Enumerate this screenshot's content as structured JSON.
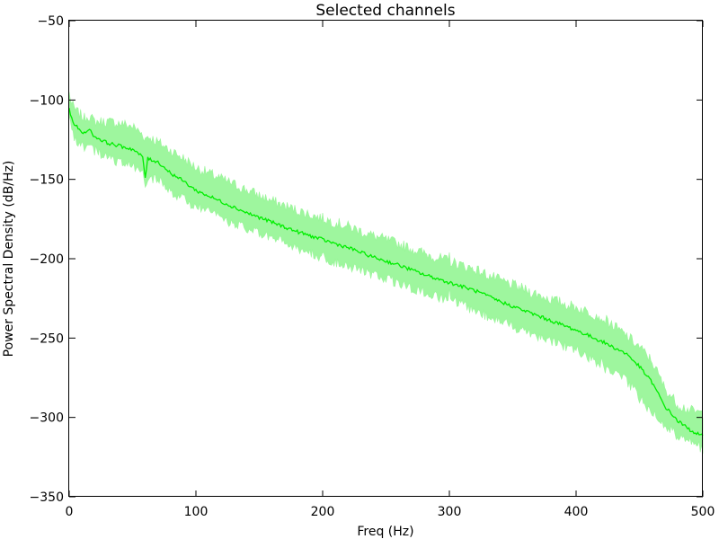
{
  "chart_data": {
    "type": "line",
    "title": "Selected channels",
    "xlabel": "Freq (Hz)",
    "ylabel": "Power Spectral Density (dB/Hz)",
    "xlim": [
      0,
      500
    ],
    "ylim": [
      -350,
      -50
    ],
    "xticks": [
      0,
      100,
      200,
      300,
      400,
      500
    ],
    "yticks": [
      -350,
      -300,
      -250,
      -200,
      -150,
      -100,
      -50
    ],
    "grid": false,
    "colors": {
      "line": "#00ee00",
      "band": "#99f599",
      "axes": "#000000"
    },
    "series": [
      {
        "x": [
          0,
          2,
          5,
          8,
          12,
          15,
          20,
          30,
          40,
          50,
          58,
          60,
          62,
          70,
          80,
          90,
          100,
          120,
          140,
          160,
          180,
          200,
          220,
          240,
          260,
          280,
          300,
          320,
          340,
          360,
          380,
          400,
          420,
          440,
          450,
          460,
          470,
          480,
          490,
          500
        ],
        "mean": [
          -105,
          -112,
          -116,
          -119,
          -121,
          -118,
          -123,
          -127,
          -129,
          -131,
          -136,
          -149,
          -137,
          -139,
          -146,
          -151,
          -157,
          -164,
          -171,
          -177,
          -183,
          -188,
          -193,
          -199,
          -204,
          -210,
          -215,
          -220,
          -227,
          -233,
          -239,
          -245,
          -252,
          -260,
          -268,
          -278,
          -293,
          -302,
          -308,
          -312
        ],
        "upper": [
          -97,
          -104,
          -108,
          -110,
          -113,
          -111,
          -115,
          -115,
          -116,
          -118,
          -123,
          -126,
          -124,
          -128,
          -133,
          -138,
          -144,
          -151,
          -158,
          -165,
          -171,
          -176,
          -181,
          -187,
          -192,
          -198,
          -203,
          -208,
          -215,
          -221,
          -227,
          -232,
          -238,
          -250,
          -257,
          -266,
          -283,
          -293,
          -297,
          -299
        ],
        "lower": [
          -112,
          -118,
          -123,
          -126,
          -128,
          -126,
          -130,
          -135,
          -138,
          -141,
          -145,
          -154,
          -147,
          -149,
          -156,
          -161,
          -166,
          -173,
          -180,
          -186,
          -192,
          -198,
          -203,
          -209,
          -214,
          -220,
          -225,
          -231,
          -238,
          -244,
          -250,
          -256,
          -266,
          -276,
          -286,
          -295,
          -303,
          -310,
          -313,
          -318
        ]
      }
    ],
    "spikes": [
      {
        "x": 60,
        "peak": -124,
        "trough": -155
      },
      {
        "x": 300,
        "peak": -196,
        "trough": -218
      },
      {
        "x": 420,
        "peak": -238,
        "trough": -262
      }
    ]
  }
}
